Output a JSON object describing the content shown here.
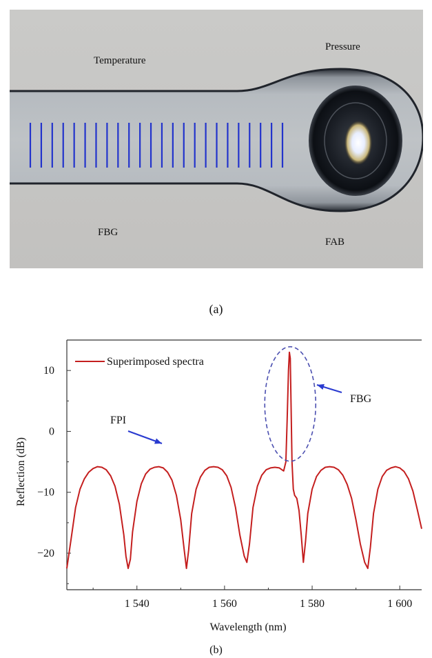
{
  "photo": {
    "labels": {
      "temperature": "Temperature",
      "pressure": "Pressure",
      "fbg": "FBG",
      "fab": "FAB"
    },
    "grating_line_count": 24,
    "colors": {
      "background": "#c8c8c6",
      "fiber": "#b9bcbf",
      "grating": "#2233cc"
    }
  },
  "caption_a": "(a)",
  "caption_b": "(b)",
  "chart_data": {
    "type": "line",
    "xlabel": "Wavelength (nm)",
    "ylabel": "Reflection (dB)",
    "xlim": [
      1524,
      1605
    ],
    "ylim": [
      -26,
      15
    ],
    "xticks": [
      1540,
      1560,
      1580,
      1600
    ],
    "xtick_labels": [
      "1 540",
      "1 560",
      "1 580",
      "1 600"
    ],
    "yticks": [
      10,
      0,
      -10,
      -20
    ],
    "ytick_labels": [
      "10",
      "0",
      "−10",
      "−20"
    ],
    "legend": {
      "entry": "Superimposed spectra",
      "placement": "top-left"
    },
    "annotations": [
      {
        "text": "FPI",
        "points_to": [
          1545,
          -5.8
        ]
      },
      {
        "text": "FBG",
        "points_to": [
          1575,
          13
        ]
      }
    ],
    "series": [
      {
        "name": "Superimposed spectra",
        "color": "#c41e1e",
        "x": [
          1524,
          1525,
          1526,
          1527,
          1528,
          1529,
          1530,
          1531,
          1532,
          1533,
          1534,
          1535,
          1536,
          1537,
          1537.5,
          1538,
          1538.5,
          1539,
          1540,
          1541,
          1542,
          1543,
          1544,
          1545,
          1546,
          1547,
          1548,
          1549,
          1550,
          1550.8,
          1551.3,
          1551.8,
          1552.5,
          1553.5,
          1554.5,
          1555.5,
          1556.5,
          1557.5,
          1558.5,
          1559.5,
          1560.5,
          1561.5,
          1562.5,
          1563.5,
          1564.5,
          1565.1,
          1565.7,
          1566.5,
          1567.5,
          1568.5,
          1569.5,
          1570.5,
          1571.5,
          1572.5,
          1573.5,
          1574,
          1574.3,
          1574.6,
          1574.8,
          1575,
          1575.2,
          1575.4,
          1575.7,
          1576,
          1576.5,
          1577,
          1577.5,
          1578,
          1578.5,
          1579,
          1580,
          1581,
          1582,
          1583,
          1584,
          1585,
          1586,
          1587,
          1588,
          1589,
          1590,
          1591,
          1592,
          1592.7,
          1593.3,
          1594,
          1595,
          1596,
          1597,
          1598,
          1599,
          1600,
          1601,
          1602,
          1603,
          1604,
          1605
        ],
        "y": [
          -22.5,
          -17.5,
          -12.5,
          -9.5,
          -7.8,
          -6.7,
          -6.1,
          -5.8,
          -5.9,
          -6.3,
          -7.3,
          -9.0,
          -12.0,
          -17.0,
          -20.5,
          -22.5,
          -21.0,
          -16.5,
          -11.5,
          -8.6,
          -7.0,
          -6.2,
          -5.9,
          -5.8,
          -6.0,
          -6.7,
          -8.0,
          -10.5,
          -14.5,
          -19.5,
          -22.5,
          -19.5,
          -13.5,
          -9.5,
          -7.5,
          -6.4,
          -5.9,
          -5.8,
          -5.9,
          -6.3,
          -7.3,
          -9.2,
          -12.5,
          -17.0,
          -20.5,
          -21.5,
          -18.5,
          -12.5,
          -9.0,
          -7.2,
          -6.3,
          -6.0,
          -5.9,
          -6.0,
          -6.5,
          -5.0,
          2.0,
          10.0,
          13.0,
          12.0,
          4.0,
          -5.0,
          -9.5,
          -10.5,
          -11.0,
          -13.0,
          -17.0,
          -21.5,
          -18.0,
          -13.5,
          -9.5,
          -7.4,
          -6.4,
          -5.9,
          -5.8,
          -5.9,
          -6.3,
          -7.2,
          -8.7,
          -11.0,
          -14.5,
          -18.5,
          -21.5,
          -22.5,
          -19.0,
          -13.5,
          -9.5,
          -7.4,
          -6.4,
          -6.0,
          -5.8,
          -6.0,
          -6.6,
          -7.8,
          -9.8,
          -12.8,
          -16.0
        ]
      }
    ]
  }
}
